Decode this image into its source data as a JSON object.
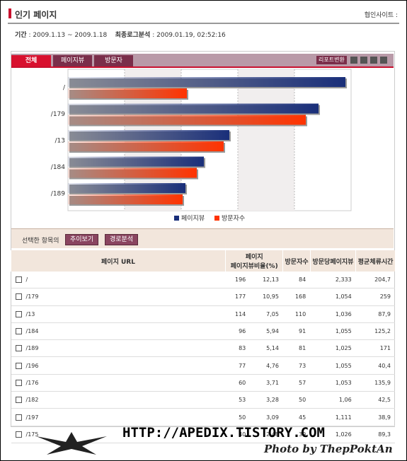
{
  "header": {
    "title": "인기 페이지",
    "site": "협인사이트 :"
  },
  "period": {
    "label": "기간",
    "range": ": 2009.1.13 ~ 2009.1.18",
    "last_label": "최종로그분석",
    "last": ": 2009.01.19, 02:52:16"
  },
  "tabs": [
    "전체",
    "페이지뷰",
    "방문자"
  ],
  "report_button": "리포트변환",
  "chart": {
    "type": "bar",
    "categories": [
      "/",
      "/179",
      "/13",
      "/184",
      "/189"
    ],
    "series": [
      {
        "name": "페이지뷰",
        "color": "#1a2f7a",
        "values": [
          196,
          177,
          114,
          96,
          83
        ]
      },
      {
        "name": "방문자수",
        "color": "#ff3300",
        "values": [
          84,
          168,
          110,
          91,
          81
        ]
      }
    ],
    "xlim": [
      0,
      200
    ]
  },
  "selection": {
    "label": "선택한 항목의",
    "buttons": [
      "추이보기",
      "경로분석"
    ]
  },
  "table": {
    "columns": [
      "페이지 URL",
      "페이지",
      "페이지뷰비율(%)",
      "방문자수",
      "방문당페이지뷰",
      "평균체류시간"
    ],
    "rows": [
      [
        "/",
        "196",
        "12,13",
        "84",
        "2,333",
        "204,7"
      ],
      [
        "/179",
        "177",
        "10,95",
        "168",
        "1,054",
        "259"
      ],
      [
        "/13",
        "114",
        "7,05",
        "110",
        "1,036",
        "87,9"
      ],
      [
        "/184",
        "96",
        "5,94",
        "91",
        "1,055",
        "125,2"
      ],
      [
        "/189",
        "83",
        "5,14",
        "81",
        "1,025",
        "171"
      ],
      [
        "/196",
        "77",
        "4,76",
        "73",
        "1,055",
        "40,4"
      ],
      [
        "/176",
        "60",
        "3,71",
        "57",
        "1,053",
        "135,9"
      ],
      [
        "/182",
        "53",
        "3,28",
        "50",
        "1,06",
        "42,5"
      ],
      [
        "/197",
        "50",
        "3,09",
        "45",
        "1,111",
        "38,9"
      ],
      [
        "/175",
        "40",
        "2,48",
        "39",
        "1,026",
        "89,3"
      ]
    ]
  },
  "footer": {
    "url": "HTTP://APEDIX.TISTORY.COM",
    "credit": "Photo by ThepPoktAn"
  }
}
